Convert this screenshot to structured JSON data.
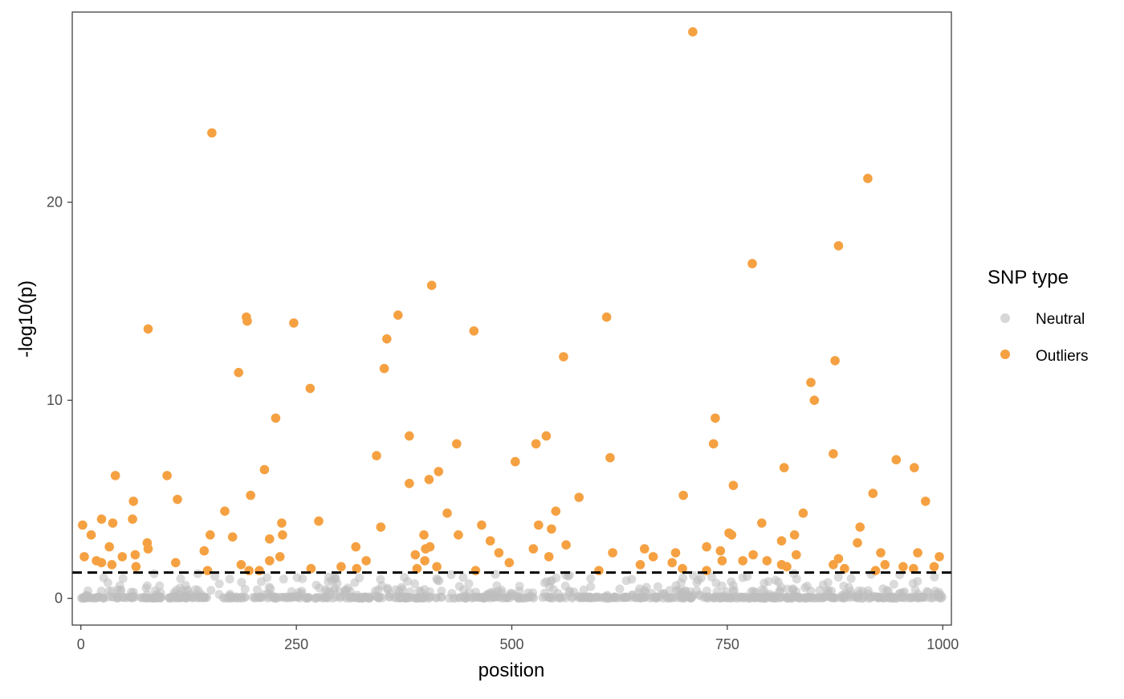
{
  "chart_data": {
    "type": "scatter",
    "title": "",
    "xlabel": "position",
    "ylabel": "-log10(p)",
    "xlim": [
      -10,
      1010
    ],
    "ylim": [
      -1.35,
      29.6
    ],
    "x_ticks": [
      0,
      250,
      500,
      750,
      1000
    ],
    "y_ticks": [
      0,
      10,
      20
    ],
    "grid": false,
    "threshold": {
      "y": 1.3,
      "style": "dashed",
      "color": "#000000"
    },
    "legend": {
      "title": "SNP type",
      "placement": "right",
      "items": [
        {
          "label": "Neutral",
          "color": "#bdbdbd"
        },
        {
          "label": "Outliers",
          "color": "#f5a142"
        }
      ]
    },
    "series": [
      {
        "name": "Outliers",
        "color": "#f5a142",
        "points": [
          [
            710,
            28.6
          ],
          [
            152,
            23.5
          ],
          [
            913,
            21.2
          ],
          [
            879,
            17.8
          ],
          [
            779,
            16.9
          ],
          [
            407,
            15.8
          ],
          [
            368,
            14.3
          ],
          [
            192,
            14.2
          ],
          [
            610,
            14.2
          ],
          [
            193,
            14.0
          ],
          [
            247,
            13.9
          ],
          [
            78,
            13.6
          ],
          [
            456,
            13.5
          ],
          [
            355,
            13.1
          ],
          [
            560,
            12.2
          ],
          [
            875,
            12.0
          ],
          [
            183,
            11.4
          ],
          [
            352,
            11.6
          ],
          [
            847,
            10.9
          ],
          [
            266,
            10.6
          ],
          [
            851,
            10.0
          ],
          [
            736,
            9.1
          ],
          [
            226,
            9.1
          ],
          [
            381,
            8.2
          ],
          [
            540,
            8.2
          ],
          [
            436,
            7.8
          ],
          [
            528,
            7.8
          ],
          [
            734,
            7.8
          ],
          [
            873,
            7.3
          ],
          [
            343,
            7.2
          ],
          [
            614,
            7.1
          ],
          [
            946,
            7.0
          ],
          [
            504,
            6.9
          ],
          [
            967,
            6.6
          ],
          [
            816,
            6.6
          ],
          [
            213,
            6.5
          ],
          [
            415,
            6.4
          ],
          [
            40,
            6.2
          ],
          [
            100,
            6.2
          ],
          [
            404,
            6.0
          ],
          [
            381,
            5.8
          ],
          [
            757,
            5.7
          ],
          [
            919,
            5.3
          ],
          [
            699,
            5.2
          ],
          [
            197,
            5.2
          ],
          [
            112,
            5.0
          ],
          [
            578,
            5.1
          ],
          [
            61,
            4.9
          ],
          [
            980,
            4.9
          ],
          [
            551,
            4.4
          ],
          [
            167,
            4.4
          ],
          [
            425,
            4.3
          ],
          [
            838,
            4.3
          ],
          [
            24,
            4.0
          ],
          [
            60,
            4.0
          ],
          [
            276,
            3.9
          ],
          [
            790,
            3.8
          ],
          [
            2,
            3.7
          ],
          [
            37,
            3.8
          ],
          [
            233,
            3.8
          ],
          [
            465,
            3.7
          ],
          [
            531,
            3.7
          ],
          [
            348,
            3.6
          ],
          [
            546,
            3.5
          ],
          [
            904,
            3.6
          ],
          [
            12,
            3.2
          ],
          [
            150,
            3.2
          ],
          [
            176,
            3.1
          ],
          [
            219,
            3.0
          ],
          [
            234,
            3.2
          ],
          [
            398,
            3.2
          ],
          [
            438,
            3.2
          ],
          [
            752,
            3.3
          ],
          [
            755,
            3.2
          ],
          [
            828,
            3.2
          ],
          [
            901,
            2.8
          ],
          [
            475,
            2.9
          ],
          [
            813,
            2.9
          ],
          [
            77,
            2.8
          ],
          [
            563,
            2.7
          ],
          [
            33,
            2.6
          ],
          [
            319,
            2.6
          ],
          [
            405,
            2.6
          ],
          [
            654,
            2.5
          ],
          [
            726,
            2.6
          ],
          [
            742,
            2.4
          ],
          [
            525,
            2.5
          ],
          [
            78,
            2.5
          ],
          [
            400,
            2.5
          ],
          [
            143,
            2.4
          ],
          [
            485,
            2.3
          ],
          [
            617,
            2.3
          ],
          [
            690,
            2.3
          ],
          [
            928,
            2.3
          ],
          [
            971,
            2.3
          ],
          [
            388,
            2.2
          ],
          [
            63,
            2.2
          ],
          [
            231,
            2.1
          ],
          [
            543,
            2.1
          ],
          [
            780,
            2.2
          ],
          [
            830,
            2.2
          ],
          [
            48,
            2.1
          ],
          [
            4,
            2.1
          ],
          [
            664,
            2.1
          ],
          [
            879,
            2.0
          ],
          [
            996,
            2.1
          ],
          [
            18,
            1.9
          ],
          [
            219,
            1.9
          ],
          [
            331,
            1.9
          ],
          [
            399,
            1.9
          ],
          [
            768,
            1.9
          ],
          [
            796,
            1.9
          ],
          [
            744,
            1.9
          ],
          [
            24,
            1.8
          ],
          [
            186,
            1.7
          ],
          [
            110,
            1.8
          ],
          [
            36,
            1.7
          ],
          [
            64,
            1.6
          ],
          [
            649,
            1.7
          ],
          [
            497,
            1.8
          ],
          [
            813,
            1.7
          ],
          [
            873,
            1.7
          ],
          [
            819,
            1.6
          ],
          [
            933,
            1.7
          ],
          [
            954,
            1.6
          ],
          [
            990,
            1.6
          ],
          [
            413,
            1.6
          ],
          [
            302,
            1.6
          ],
          [
            267,
            1.5
          ],
          [
            195,
            1.4
          ],
          [
            698,
            1.5
          ],
          [
            686,
            1.8
          ],
          [
            147,
            1.4
          ],
          [
            390,
            1.5
          ],
          [
            601,
            1.4
          ],
          [
            726,
            1.4
          ],
          [
            966,
            1.5
          ],
          [
            458,
            1.4
          ],
          [
            207,
            1.4
          ],
          [
            320,
            1.5
          ],
          [
            886,
            1.5
          ],
          [
            922,
            1.4
          ]
        ]
      }
    ],
    "neutral_series": {
      "name": "Neutral",
      "color": "#bdbdbd",
      "count": 850,
      "max_y": 1.3
    }
  }
}
